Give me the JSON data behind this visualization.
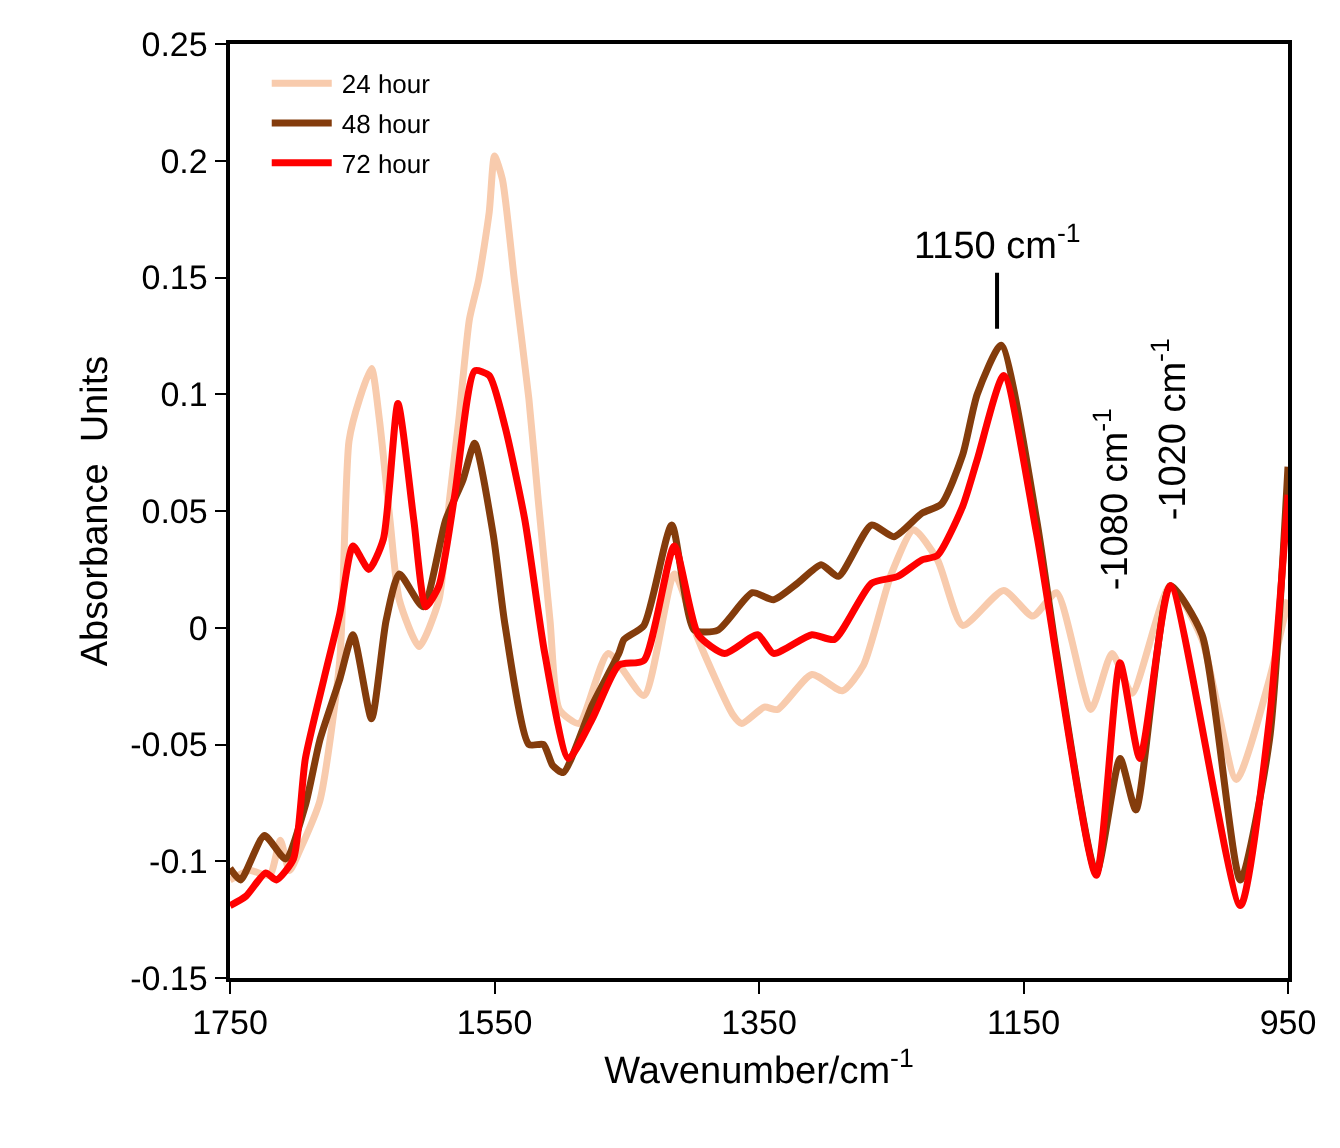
{
  "chart_data": {
    "type": "line",
    "xlabel": "Wavenumber/cm$^{-1}$",
    "ylabel": "Absorbance  Units",
    "xlim": [
      1750,
      950
    ],
    "xticks": [
      1750,
      1550,
      1350,
      1150,
      950
    ],
    "ylim": [
      -0.15,
      0.25
    ],
    "yticks": [
      -0.15,
      -0.1,
      -0.05,
      0,
      0.05,
      0.1,
      0.15,
      0.2,
      0.25
    ],
    "legend": "top left",
    "marker": "none",
    "line_style": "solid",
    "annotations": [
      "1150 cm$^{-1}$",
      "-1080 cm$^{-1}$",
      "-1020 cm$^{-1}$"
    ],
    "series": [
      {
        "name": "24 hour",
        "color": "#f8cbad",
        "x": [
          1750,
          1735,
          1720,
          1712,
          1705,
          1697,
          1682,
          1667,
          1660,
          1652,
          1643,
          1637,
          1629,
          1622,
          1607,
          1592,
          1584,
          1577,
          1569,
          1562,
          1554,
          1550,
          1544,
          1535,
          1524,
          1517,
          1508,
          1501,
          1486,
          1464,
          1437,
          1414,
          1396,
          1370,
          1363,
          1346,
          1336,
          1310,
          1287,
          1271,
          1250,
          1233,
          1215,
          1196,
          1165,
          1143,
          1125,
          1099,
          1083,
          1068,
          1039,
          1015,
          989,
          964,
          950
        ],
        "values": [
          -0.108,
          -0.104,
          -0.106,
          -0.091,
          -0.104,
          -0.095,
          -0.074,
          -0.014,
          0.08,
          0.098,
          0.111,
          0.089,
          0.046,
          0.012,
          -0.008,
          0.012,
          0.055,
          0.089,
          0.132,
          0.149,
          0.178,
          0.202,
          0.192,
          0.149,
          0.098,
          0.055,
          0.003,
          -0.035,
          -0.041,
          -0.011,
          -0.029,
          0.023,
          -0.005,
          -0.037,
          -0.041,
          -0.034,
          -0.035,
          -0.02,
          -0.027,
          -0.016,
          0.023,
          0.042,
          0.029,
          0.001,
          0.016,
          0.005,
          0.015,
          -0.035,
          -0.011,
          -0.028,
          0.018,
          -0.005,
          -0.065,
          -0.022,
          0.012
        ]
      },
      {
        "name": "48 hour",
        "color": "#843c0c",
        "x": [
          1750,
          1742,
          1724,
          1708,
          1693,
          1682,
          1667,
          1657,
          1643,
          1632,
          1622,
          1604,
          1587,
          1574,
          1565,
          1551,
          1542,
          1524,
          1513,
          1506,
          1498,
          1476,
          1456,
          1452,
          1437,
          1416,
          1399,
          1381,
          1355,
          1339,
          1321,
          1303,
          1290,
          1265,
          1248,
          1227,
          1212,
          1196,
          1185,
          1167,
          1140,
          1125,
          1095,
          1077,
          1065,
          1039,
          1015,
          986,
          964,
          950
        ],
        "values": [
          -0.103,
          -0.108,
          -0.089,
          -0.099,
          -0.076,
          -0.048,
          -0.022,
          -0.003,
          -0.039,
          0.003,
          0.023,
          0.009,
          0.046,
          0.063,
          0.079,
          0.04,
          0.001,
          -0.05,
          -0.05,
          -0.059,
          -0.062,
          -0.033,
          -0.011,
          -0.005,
          0.001,
          0.044,
          -0.001,
          -0.001,
          0.015,
          0.012,
          0.019,
          0.027,
          0.022,
          0.044,
          0.039,
          0.049,
          0.053,
          0.074,
          0.1,
          0.121,
          0.046,
          -0.011,
          -0.105,
          -0.056,
          -0.078,
          0.018,
          -0.003,
          -0.108,
          -0.048,
          0.069
        ]
      },
      {
        "name": "72 hour",
        "color": "#ff0000",
        "x": [
          1750,
          1738,
          1723,
          1715,
          1702,
          1693,
          1679,
          1667,
          1657,
          1645,
          1634,
          1623,
          1611,
          1602,
          1592,
          1580,
          1565,
          1554,
          1542,
          1527,
          1512,
          1494,
          1476,
          1456,
          1437,
          1414,
          1396,
          1376,
          1351,
          1339,
          1310,
          1293,
          1265,
          1245,
          1227,
          1215,
          1196,
          1185,
          1165,
          1140,
          1095,
          1077,
          1062,
          1039,
          986,
          964,
          950
        ],
        "values": [
          -0.119,
          -0.115,
          -0.105,
          -0.108,
          -0.099,
          -0.056,
          -0.022,
          0.006,
          0.035,
          0.025,
          0.038,
          0.096,
          0.046,
          0.009,
          0.018,
          0.057,
          0.11,
          0.108,
          0.086,
          0.046,
          -0.011,
          -0.056,
          -0.039,
          -0.016,
          -0.014,
          0.035,
          -0.003,
          -0.011,
          -0.003,
          -0.011,
          -0.003,
          -0.005,
          0.019,
          0.022,
          0.029,
          0.031,
          0.052,
          0.072,
          0.108,
          0.04,
          -0.106,
          -0.015,
          -0.056,
          0.018,
          -0.119,
          -0.039,
          0.057
        ]
      }
    ]
  }
}
